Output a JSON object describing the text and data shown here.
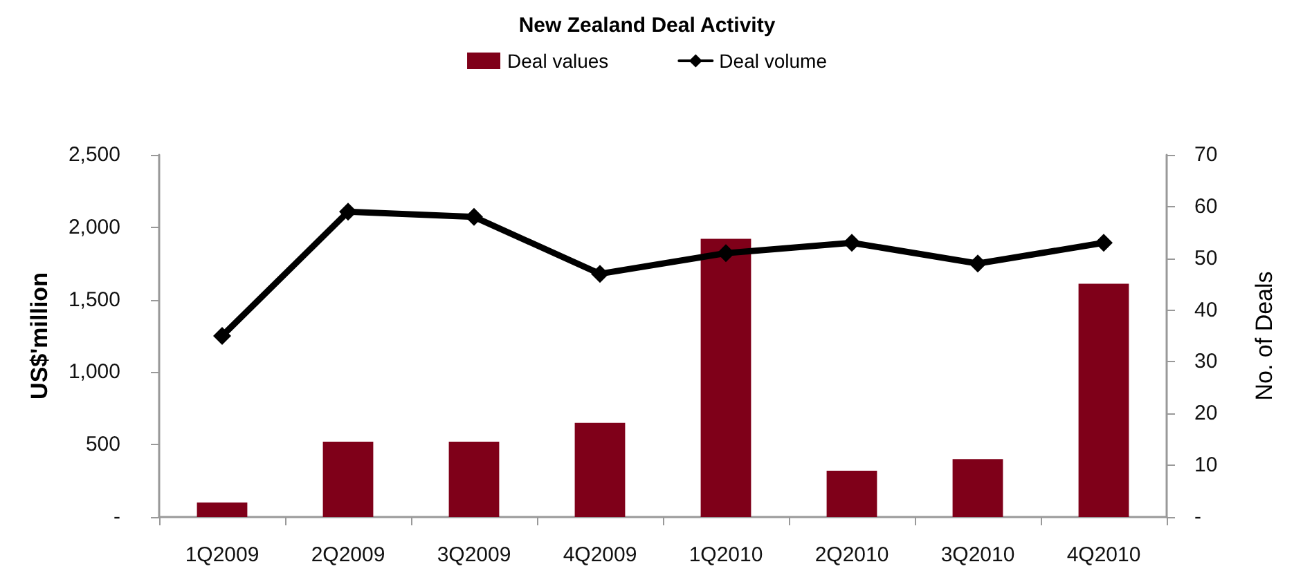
{
  "chart_data": {
    "type": "bar",
    "title": "New Zealand Deal Activity",
    "ylabel": "US$'million",
    "y2label": "No. of Deals",
    "categories": [
      "1Q2009",
      "2Q2009",
      "3Q2009",
      "4Q2009",
      "1Q2010",
      "2Q2010",
      "3Q2010",
      "4Q2010"
    ],
    "series": [
      {
        "name": "Deal values",
        "color": "#7f0019",
        "values": [
          100,
          520,
          520,
          650,
          1920,
          320,
          400,
          1610
        ]
      },
      {
        "name": "Deal volume",
        "type": "line",
        "axis": "y2",
        "color": "#000000",
        "marker": "diamond",
        "values": [
          35,
          59,
          58,
          47,
          51,
          53,
          49,
          53
        ]
      }
    ],
    "ylim": [
      0,
      2500
    ],
    "yticks": [
      {
        "value": 0,
        "label": "-"
      },
      {
        "value": 500,
        "label": "500"
      },
      {
        "value": 1000,
        "label": "1,000"
      },
      {
        "value": 1500,
        "label": "1,500"
      },
      {
        "value": 2000,
        "label": "2,000"
      },
      {
        "value": 2500,
        "label": "2,500"
      }
    ],
    "y2lim": [
      0,
      70
    ],
    "y2ticks": [
      {
        "value": 0,
        "label": "-"
      },
      10,
      20,
      30,
      40,
      50,
      60,
      70
    ],
    "grid": false,
    "legend": "top"
  }
}
